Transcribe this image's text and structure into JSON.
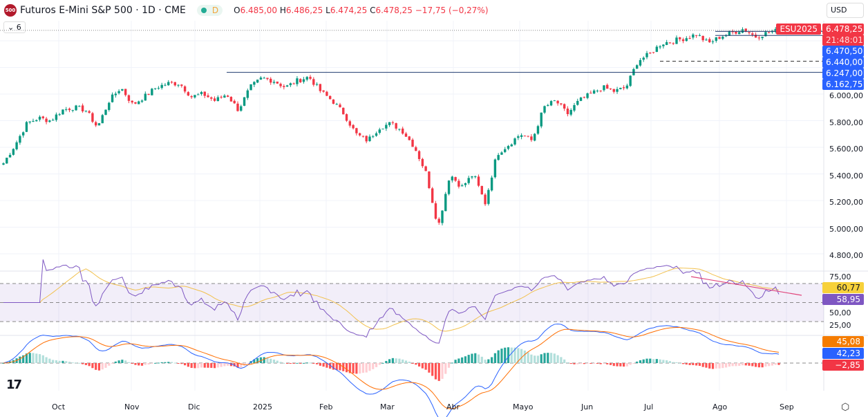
{
  "header": {
    "logo_text": "500",
    "title": "Futuros E-Mini S&P 500 · 1D · CME",
    "interval_badge": "D",
    "ohlc": {
      "o_label": "O",
      "o": "6.485,00",
      "h_label": "H",
      "h": "6.486,25",
      "l_label": "L",
      "l": "6.474,25",
      "c_label": "C",
      "c": "6.478,25",
      "change": "−17,75 (−0,27%)"
    },
    "indicators_count": "6",
    "currency": "USD"
  },
  "price_labels": {
    "symbol": "ESU2025",
    "last": "6.478,25",
    "countdown": "21:48:01",
    "levels": [
      "6.470,50",
      "6.440,00",
      "6.247,00",
      "6.162,75"
    ]
  },
  "colors": {
    "up": "#089981",
    "down": "#f23645",
    "level": "#2962ff",
    "rsi": "#7e57c2",
    "rsi_ma": "#f2c14e",
    "macd": "#2962ff",
    "signal": "#ff6d00"
  },
  "chart_data": [
    {
      "type": "candlestick",
      "interval": "1D",
      "ylim": [
        4700,
        6550
      ],
      "y_ticks": [
        "6.000,00",
        "5.800,00",
        "5.600,00",
        "5.400,00",
        "5.200,00",
        "5.000,00",
        "4.800,00"
      ],
      "x_ticks": [
        "Oct",
        "Nov",
        "Dic",
        "2025",
        "Feb",
        "Mar",
        "Abr",
        "Mayo",
        "Jun",
        "Jul",
        "Ago",
        "Sep"
      ],
      "approx_weekly_closes": [
        5480,
        5620,
        5780,
        5820,
        5800,
        5880,
        5900,
        5880,
        5750,
        5950,
        6050,
        5920,
        5980,
        6050,
        6080,
        6080,
        5980,
        6000,
        5950,
        6000,
        5880,
        6050,
        6120,
        6100,
        6050,
        6100,
        6130,
        6020,
        5950,
        5850,
        5700,
        5650,
        5750,
        5780,
        5720,
        5600,
        5400,
        5000,
        5400,
        5300,
        5400,
        5180,
        5550,
        5620,
        5700,
        5650,
        5900,
        5950,
        5850,
        5950,
        6000,
        6050,
        6020,
        6050,
        6250,
        6300,
        6380,
        6400,
        6420,
        6450,
        6380,
        6430,
        6460,
        6490,
        6430,
        6460,
        6478
      ],
      "horizontal_levels": [
        6470.5,
        6440,
        6247,
        6162.75
      ]
    },
    {
      "type": "line",
      "name": "RSI",
      "ylim": [
        20,
        80
      ],
      "y_ticks": [
        "75,00",
        "50,00",
        "25,00"
      ],
      "bands": [
        30,
        50,
        70
      ],
      "last_rsi": "58,95",
      "last_ma": "60,77"
    },
    {
      "type": "histogram+line",
      "name": "MACD",
      "last_signal": "45,08",
      "last_macd": "42,23",
      "last_hist": "−2,85"
    }
  ]
}
